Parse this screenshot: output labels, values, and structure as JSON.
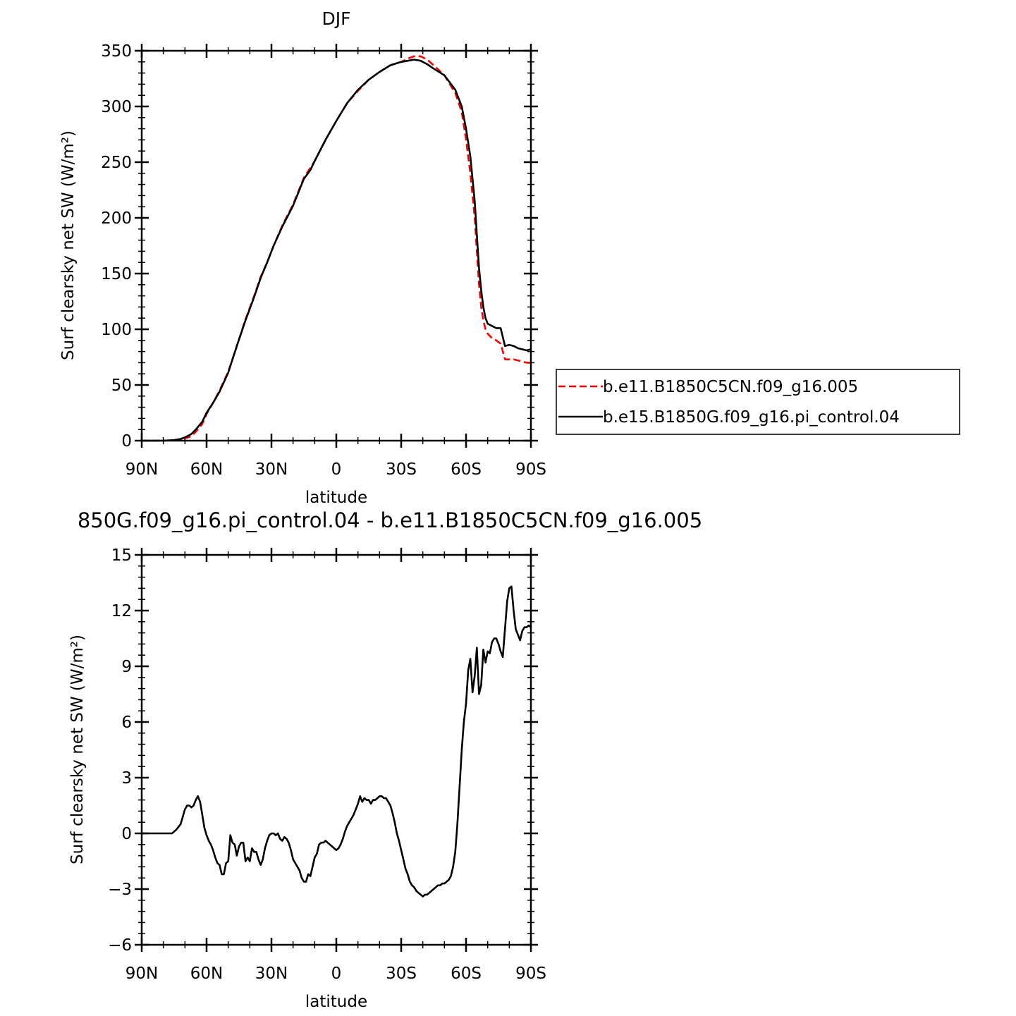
{
  "chart_data": [
    {
      "type": "line",
      "title": "DJF",
      "xlabel": "latitude",
      "ylabel": "Surf clearsky net SW (W/m²)",
      "xlim": [
        90,
        -90
      ],
      "ylim": [
        0,
        350
      ],
      "yticks": [
        0,
        50,
        100,
        150,
        200,
        250,
        300,
        350
      ],
      "xticks": [
        90,
        60,
        30,
        0,
        -30,
        -60,
        -90
      ],
      "xticklabels": [
        "90N",
        "60N",
        "30N",
        "0",
        "30S",
        "60S",
        "90S"
      ],
      "legend_position": "right",
      "series": [
        {
          "name": "b.e11.B1850C5CN.f09_g16.005",
          "color": "#ff0000",
          "dash": "dashed",
          "x": [
            90,
            80,
            75,
            72,
            70,
            67,
            65,
            62,
            60,
            57,
            54,
            50,
            46,
            42,
            38,
            35,
            32,
            29,
            25,
            20,
            15,
            12,
            10,
            5,
            0,
            -5,
            -10,
            -15,
            -20,
            -25,
            -30,
            -33,
            -36,
            -39,
            -42,
            -45,
            -50,
            -55,
            -58,
            -60,
            -62,
            -64,
            -65,
            -66,
            -67,
            -68,
            -69,
            -70,
            -72,
            -74,
            -76,
            -78,
            -80,
            -82,
            -84,
            -86,
            -88,
            -90
          ],
          "y": [
            0,
            0,
            0.5,
            1,
            2,
            4,
            8,
            15,
            24,
            34,
            45,
            62,
            85,
            109,
            130,
            147,
            160,
            175,
            193,
            212,
            236,
            245,
            251,
            270,
            287,
            303,
            314,
            324,
            331,
            337,
            340,
            343,
            345,
            345,
            342,
            337,
            328,
            312,
            295,
            270,
            240,
            200,
            170,
            140,
            120,
            108,
            100,
            96,
            92,
            90,
            87,
            73,
            73,
            73,
            72,
            71,
            70,
            70
          ]
        },
        {
          "name": "b.e15.B1850G.f09_g16.pi_control.04",
          "color": "#000000",
          "dash": "solid",
          "x": [
            90,
            80,
            75,
            72,
            70,
            67,
            65,
            62,
            60,
            57,
            54,
            50,
            46,
            42,
            38,
            35,
            32,
            29,
            25,
            20,
            15,
            12,
            10,
            5,
            0,
            -5,
            -10,
            -15,
            -20,
            -25,
            -30,
            -33,
            -36,
            -39,
            -42,
            -45,
            -50,
            -55,
            -58,
            -60,
            -62,
            -64,
            -65,
            -66,
            -67,
            -68,
            -69,
            -70,
            -72,
            -74,
            -76,
            -78,
            -80,
            -82,
            -84,
            -86,
            -88,
            -90
          ],
          "y": [
            0,
            0,
            0.5,
            1.5,
            3,
            6,
            10,
            17,
            25,
            34,
            44,
            61,
            85,
            108,
            129,
            146,
            160,
            175,
            192,
            211,
            235,
            243,
            251,
            270,
            287,
            303,
            315,
            324,
            331,
            337,
            340,
            341,
            342,
            341,
            338,
            334,
            328,
            315,
            300,
            280,
            255,
            215,
            185,
            155,
            135,
            120,
            110,
            105,
            103,
            101,
            101,
            85,
            86,
            85,
            83,
            82,
            81,
            82
          ]
        }
      ]
    },
    {
      "type": "line",
      "title": "850G.f09_g16.pi_control.04 - b.e11.B1850C5CN.f09_g16.005",
      "xlabel": "latitude",
      "ylabel": "Surf clearsky net SW (W/m²)",
      "xlim": [
        90,
        -90
      ],
      "ylim": [
        -6,
        15
      ],
      "yticks": [
        -6,
        -3,
        0,
        3,
        6,
        9,
        12,
        15
      ],
      "yticklabels": [
        "−6",
        "−3",
        "0",
        "3",
        "6",
        "9",
        "12",
        "15"
      ],
      "xticks": [
        90,
        60,
        30,
        0,
        -30,
        -60,
        -90
      ],
      "xticklabels": [
        "90N",
        "60N",
        "30N",
        "0",
        "30S",
        "60S",
        "90S"
      ],
      "series": [
        {
          "color": "#000000",
          "x": [
            90,
            80,
            76,
            74,
            72,
            71,
            70,
            69,
            68,
            67,
            66,
            65,
            64,
            63,
            62,
            61,
            60,
            59,
            58,
            57,
            56,
            55,
            54,
            53,
            52,
            51,
            50,
            49,
            48,
            47,
            46,
            45,
            44,
            43,
            42,
            41,
            40,
            39,
            38,
            37,
            36,
            35,
            34,
            33,
            32,
            31,
            30,
            29,
            28,
            27,
            26,
            25,
            24,
            23,
            22,
            21,
            20,
            19,
            18,
            17,
            16,
            15,
            14,
            13,
            12,
            11,
            10,
            9,
            8,
            7,
            6,
            5,
            4,
            3,
            2,
            1,
            0,
            -1,
            -2,
            -3,
            -4,
            -5,
            -6,
            -7,
            -8,
            -9,
            -10,
            -11,
            -12,
            -13,
            -14,
            -15,
            -16,
            -17,
            -18,
            -19,
            -20,
            -21,
            -22,
            -23,
            -24,
            -25,
            -26,
            -27,
            -28,
            -29,
            -30,
            -31,
            -32,
            -33,
            -34,
            -35,
            -36,
            -37,
            -38,
            -39,
            -40,
            -41,
            -42,
            -43,
            -44,
            -45,
            -46,
            -47,
            -48,
            -49,
            -50,
            -51,
            -52,
            -53,
            -54,
            -55,
            -56,
            -57,
            -58,
            -59,
            -60,
            -61,
            -62,
            -63,
            -64,
            -65,
            -66,
            -67,
            -68,
            -69,
            -70,
            -71,
            -72,
            -73,
            -74,
            -75,
            -76,
            -77,
            -78,
            -79,
            -80,
            -81,
            -82,
            -83,
            -84,
            -85,
            -86,
            -87,
            -88,
            -89,
            -90
          ],
          "y": [
            0,
            0,
            0,
            0.2,
            0.5,
            0.9,
            1.3,
            1.5,
            1.5,
            1.4,
            1.5,
            1.8,
            2.0,
            1.7,
            1.0,
            0.3,
            -0.1,
            -0.4,
            -0.6,
            -0.9,
            -1.3,
            -1.6,
            -1.7,
            -2.2,
            -2.2,
            -1.6,
            -1.5,
            -0.1,
            -0.5,
            -0.6,
            -1.2,
            -0.7,
            -0.5,
            -0.5,
            -1.5,
            -1.3,
            -1.5,
            -0.8,
            -1.0,
            -1.0,
            -1.4,
            -1.7,
            -1.4,
            -0.8,
            -0.4,
            -0.1,
            0.0,
            0.0,
            -0.1,
            0.0,
            -0.3,
            -0.4,
            -0.2,
            -0.3,
            -0.5,
            -0.9,
            -1.4,
            -1.6,
            -1.8,
            -2.0,
            -2.4,
            -2.6,
            -2.6,
            -2.2,
            -2.3,
            -1.8,
            -1.3,
            -1.1,
            -0.6,
            -0.5,
            -0.5,
            -0.4,
            -0.5,
            -0.6,
            -0.7,
            -0.8,
            -0.9,
            -0.8,
            -0.6,
            -0.3,
            0.1,
            0.4,
            0.6,
            0.8,
            1.0,
            1.3,
            1.6,
            2.0,
            1.7,
            1.9,
            1.8,
            1.8,
            1.6,
            1.8,
            1.8,
            1.9,
            2.0,
            2.0,
            1.9,
            1.9,
            1.7,
            1.5,
            1.1,
            0.6,
            0.0,
            -0.4,
            -0.9,
            -1.4,
            -1.9,
            -2.2,
            -2.6,
            -2.8,
            -2.9,
            -3.1,
            -3.2,
            -3.3,
            -3.4,
            -3.3,
            -3.3,
            -3.2,
            -3.1,
            -3.0,
            -2.9,
            -2.8,
            -2.8,
            -2.7,
            -2.7,
            -2.6,
            -2.5,
            -2.3,
            -1.8,
            -1.0,
            0.5,
            2.5,
            4.5,
            6.0,
            7.0,
            8.8,
            9.4,
            7.6,
            8.5,
            10.0,
            7.5,
            8.0,
            9.9,
            9.2,
            9.8,
            9.7,
            10.3,
            10.5,
            10.5,
            10.2,
            9.8,
            9.5,
            11.0,
            12.5,
            13.2,
            13.3,
            12.0,
            11.0,
            10.7,
            10.4,
            10.9,
            11.1,
            11.1,
            11.2,
            11.1
          ]
        }
      ]
    }
  ]
}
